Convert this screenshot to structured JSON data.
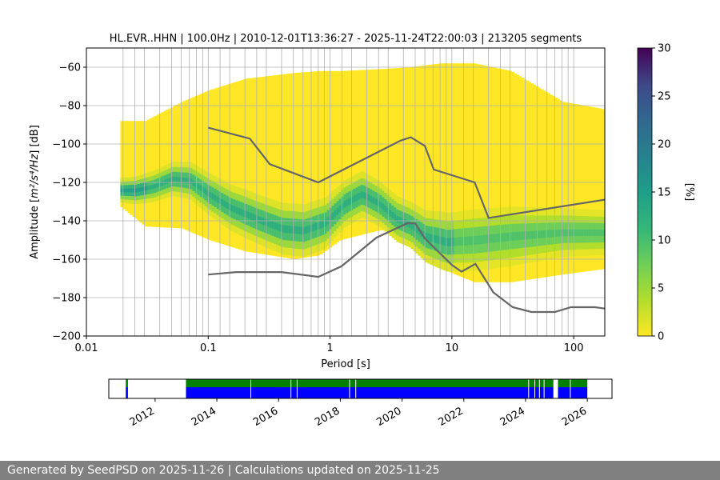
{
  "chart_data": [
    {
      "type": "heatmap",
      "title": "HL.EVR..HHN | 100.0Hz | 2010-12-01T13:36:27 - 2025-11-24T22:00:03 | 213205 segments",
      "xlabel": "Period [s]",
      "ylabel_prefix": "Amplitude [",
      "ylabel_math": "m²/s⁴/Hz",
      "ylabel_suffix": "] [dB]",
      "x_scale": "log",
      "xlim": [
        0.01,
        180
      ],
      "ylim": [
        -200,
        -50
      ],
      "x_ticks": [
        {
          "v": 0.01,
          "label": "0.01"
        },
        {
          "v": 0.1,
          "label": "0.1"
        },
        {
          "v": 1,
          "label": "1"
        },
        {
          "v": 10,
          "label": "10"
        },
        {
          "v": 100,
          "label": "100"
        }
      ],
      "y_ticks": [
        {
          "v": -60,
          "label": "−60"
        },
        {
          "v": -80,
          "label": "−80"
        },
        {
          "v": -100,
          "label": "−100"
        },
        {
          "v": -120,
          "label": "−120"
        },
        {
          "v": -140,
          "label": "−140"
        },
        {
          "v": -160,
          "label": "−160"
        },
        {
          "v": -180,
          "label": "−180"
        },
        {
          "v": -200,
          "label": "−200"
        }
      ],
      "grid_x_periods": [
        0.02,
        0.025,
        0.03,
        0.04,
        0.05,
        0.06,
        0.07,
        0.08,
        0.09,
        0.1,
        0.125,
        0.15,
        0.2,
        0.25,
        0.3,
        0.4,
        0.5,
        0.6,
        0.7,
        0.8,
        0.9,
        1.0,
        1.25,
        1.5,
        2,
        2.5,
        3,
        4,
        5,
        6,
        7,
        8,
        9,
        10,
        12.5,
        15,
        20,
        25,
        30,
        40,
        50,
        60,
        70,
        80,
        90,
        100
      ],
      "psd_density": {
        "period_min": 0.019,
        "band_edges_db": [
          [
            0.019,
            -133,
            -88
          ],
          [
            0.03,
            -143,
            -88
          ],
          [
            0.06,
            -144,
            -78
          ],
          [
            0.1,
            -150,
            -72
          ],
          [
            0.2,
            -156,
            -66
          ],
          [
            0.5,
            -160,
            -63
          ],
          [
            0.8,
            -158,
            -62
          ],
          [
            1.2,
            -150,
            -62
          ],
          [
            2.5,
            -145,
            -61
          ],
          [
            4.5,
            -145,
            -60
          ],
          [
            8,
            -165,
            -58
          ],
          [
            15,
            -172,
            -58
          ],
          [
            30,
            -172,
            -62
          ],
          [
            80,
            -168,
            -78
          ],
          [
            180,
            -165,
            -82
          ]
        ],
        "mode_db": [
          [
            0.019,
            -124
          ],
          [
            0.025,
            -124
          ],
          [
            0.035,
            -122
          ],
          [
            0.05,
            -118
          ],
          [
            0.07,
            -119
          ],
          [
            0.1,
            -126
          ],
          [
            0.15,
            -133
          ],
          [
            0.25,
            -139
          ],
          [
            0.4,
            -144
          ],
          [
            0.6,
            -145
          ],
          [
            0.9,
            -141
          ],
          [
            1.3,
            -131
          ],
          [
            1.8,
            -126
          ],
          [
            2.5,
            -131
          ],
          [
            3.5,
            -139
          ],
          [
            4.5,
            -142
          ],
          [
            6,
            -148
          ],
          [
            9,
            -151
          ],
          [
            15,
            -150
          ],
          [
            30,
            -148
          ],
          [
            80,
            -146
          ],
          [
            180,
            -146
          ]
        ]
      },
      "series": [
        {
          "points": [
            [
              0.1,
              -91.5
            ],
            [
              0.22,
              -97.2
            ],
            [
              0.32,
              -110.5
            ],
            [
              0.8,
              -120
            ],
            [
              3.8,
              -98.2
            ],
            [
              4.6,
              -96.5
            ],
            [
              6.0,
              -101
            ],
            [
              7.1,
              -113.3
            ],
            [
              15.4,
              -120
            ],
            [
              20,
              -138.5
            ],
            [
              180,
              -129
            ]
          ]
        },
        {
          "points": [
            [
              0.1,
              -168
            ],
            [
              0.17,
              -166.7
            ],
            [
              0.4,
              -166.7
            ],
            [
              0.8,
              -169.2
            ],
            [
              1.24,
              -163.7
            ],
            [
              2.4,
              -148.8
            ],
            [
              4.3,
              -141.3
            ],
            [
              5.0,
              -141.3
            ],
            [
              6.0,
              -149.2
            ],
            [
              10,
              -163
            ],
            [
              12,
              -166.5
            ],
            [
              15.6,
              -162.4
            ],
            [
              21.9,
              -177.3
            ],
            [
              31.6,
              -185.0
            ],
            [
              45,
              -187.5
            ],
            [
              70,
              -187.5
            ],
            [
              95,
              -185.0
            ],
            [
              150,
              -185.0
            ],
            [
              180,
              -185.7
            ]
          ]
        }
      ],
      "colorbar": {
        "label": "[%]",
        "min": 0,
        "max": 30,
        "ticks": [
          0,
          5,
          10,
          15,
          20,
          25,
          30
        ],
        "colormap": "viridis_r"
      }
    },
    {
      "type": "timeline",
      "x_ticks": [
        "2012",
        "2014",
        "2016",
        "2018",
        "2020",
        "2022",
        "2024",
        "2026"
      ],
      "xlim": [
        2010.5,
        2026.8
      ],
      "data_available_periods": [
        [
          2011.05,
          2011.12
        ],
        [
          2013.0,
          2024.9
        ],
        [
          2025.05,
          2026.0
        ]
      ],
      "colors": {
        "green": "#008000",
        "blue": "#0000ff"
      }
    }
  ],
  "footer": {
    "text": "Generated by SeedPSD on 2025-11-26 | Calculations updated on 2025-11-25"
  }
}
